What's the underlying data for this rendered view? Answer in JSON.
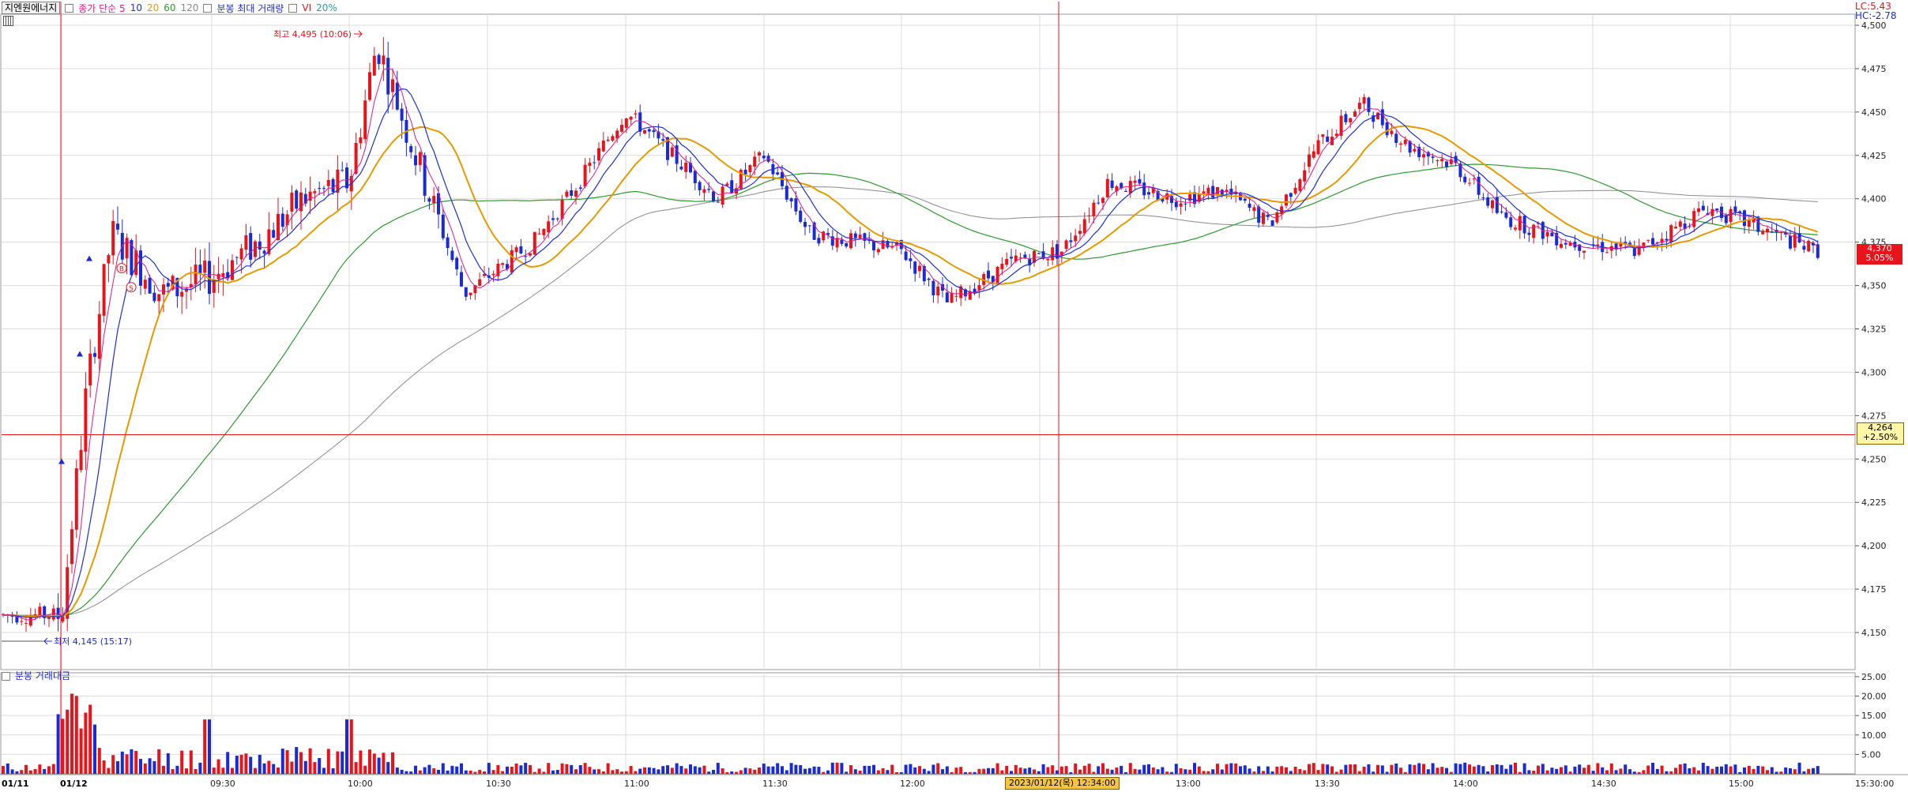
{
  "header": {
    "stock_button": "지엔원에너지",
    "legend_items": [
      {
        "text": "종가 단순 5",
        "color": "#e0188c"
      },
      {
        "text": "10",
        "color": "#1f2fd8"
      },
      {
        "text": "20",
        "color": "#e59a00"
      },
      {
        "text": "60",
        "color": "#2e9a2e"
      },
      {
        "text": "120",
        "color": "#8a8a8a"
      }
    ],
    "volume_legend": "분봉 최대 거래량",
    "vi_label": "VI",
    "vi_value": "20%"
  },
  "top_right": {
    "lc": "LC:5.43",
    "hc": "HC:-2.78"
  },
  "annotations": {
    "high": "최고 4,495 (10:06)",
    "low": "최저 4,145 (15:17)"
  },
  "markers": {
    "b_label": "B",
    "s_label": "S"
  },
  "last_price": {
    "value": "4,370",
    "change": "5.05%",
    "color": "#e8141c"
  },
  "cursor": {
    "value": "4,264",
    "change": "+2.50%",
    "date_label": "2023/01/12(목) 12:34:00"
  },
  "sub_legend": "분봉 거래대금",
  "colors": {
    "up": "#e8141c",
    "down": "#1a2bd6",
    "ma5": "#e0188c",
    "ma10": "#1f2fd8",
    "ma20": "#e59a00",
    "ma60": "#2e9a2e",
    "ma120": "#8a8a8a",
    "grid": "#dcdcdc",
    "crosshair": "#e8141c"
  },
  "chart_data": {
    "type": "candlestick",
    "y_ticks": [
      "4,500",
      "4,475",
      "4,450",
      "4,425",
      "4,400",
      "4,375",
      "4,350",
      "4,325",
      "4,300",
      "4,275",
      "4,250",
      "4,225",
      "4,200",
      "4,175",
      "4,150"
    ],
    "y_range": [
      4130,
      4510
    ],
    "x_ticks": [
      "01/11",
      "01/12",
      "09:30",
      "10:00",
      "10:30",
      "11:00",
      "11:30",
      "12:00",
      "13:00",
      "13:30",
      "14:00",
      "14:30",
      "15:00",
      "15:30:00"
    ],
    "volume_ticks": [
      "25.00",
      "20.00",
      "15.00",
      "10.00",
      "5.00"
    ],
    "volume_range": [
      0,
      26
    ],
    "price_path": [
      {
        "t": "01/11",
        "p": 4160
      },
      {
        "t": "01/12",
        "p": 4160
      },
      {
        "t": "09:05",
        "p": 4290
      },
      {
        "t": "09:10",
        "p": 4380
      },
      {
        "t": "09:20",
        "p": 4345
      },
      {
        "t": "09:30",
        "p": 4355
      },
      {
        "t": "09:40",
        "p": 4375
      },
      {
        "t": "09:50",
        "p": 4400
      },
      {
        "t": "10:00",
        "p": 4410
      },
      {
        "t": "10:06",
        "p": 4490
      },
      {
        "t": "10:15",
        "p": 4420
      },
      {
        "t": "10:25",
        "p": 4345
      },
      {
        "t": "10:40",
        "p": 4375
      },
      {
        "t": "10:50",
        "p": 4410
      },
      {
        "t": "11:00",
        "p": 4450
      },
      {
        "t": "11:10",
        "p": 4425
      },
      {
        "t": "11:20",
        "p": 4400
      },
      {
        "t": "11:30",
        "p": 4425
      },
      {
        "t": "11:40",
        "p": 4380
      },
      {
        "t": "12:00",
        "p": 4370
      },
      {
        "t": "12:10",
        "p": 4340
      },
      {
        "t": "12:25",
        "p": 4365
      },
      {
        "t": "12:35",
        "p": 4370
      },
      {
        "t": "12:45",
        "p": 4410
      },
      {
        "t": "13:00",
        "p": 4400
      },
      {
        "t": "13:10",
        "p": 4405
      },
      {
        "t": "13:20",
        "p": 4385
      },
      {
        "t": "13:30",
        "p": 4430
      },
      {
        "t": "13:40",
        "p": 4455
      },
      {
        "t": "13:50",
        "p": 4430
      },
      {
        "t": "14:00",
        "p": 4420
      },
      {
        "t": "14:10",
        "p": 4390
      },
      {
        "t": "14:25",
        "p": 4375
      },
      {
        "t": "14:40",
        "p": 4370
      },
      {
        "t": "14:55",
        "p": 4395
      },
      {
        "t": "15:10",
        "p": 4380
      },
      {
        "t": "15:20",
        "p": 4370
      }
    ]
  }
}
